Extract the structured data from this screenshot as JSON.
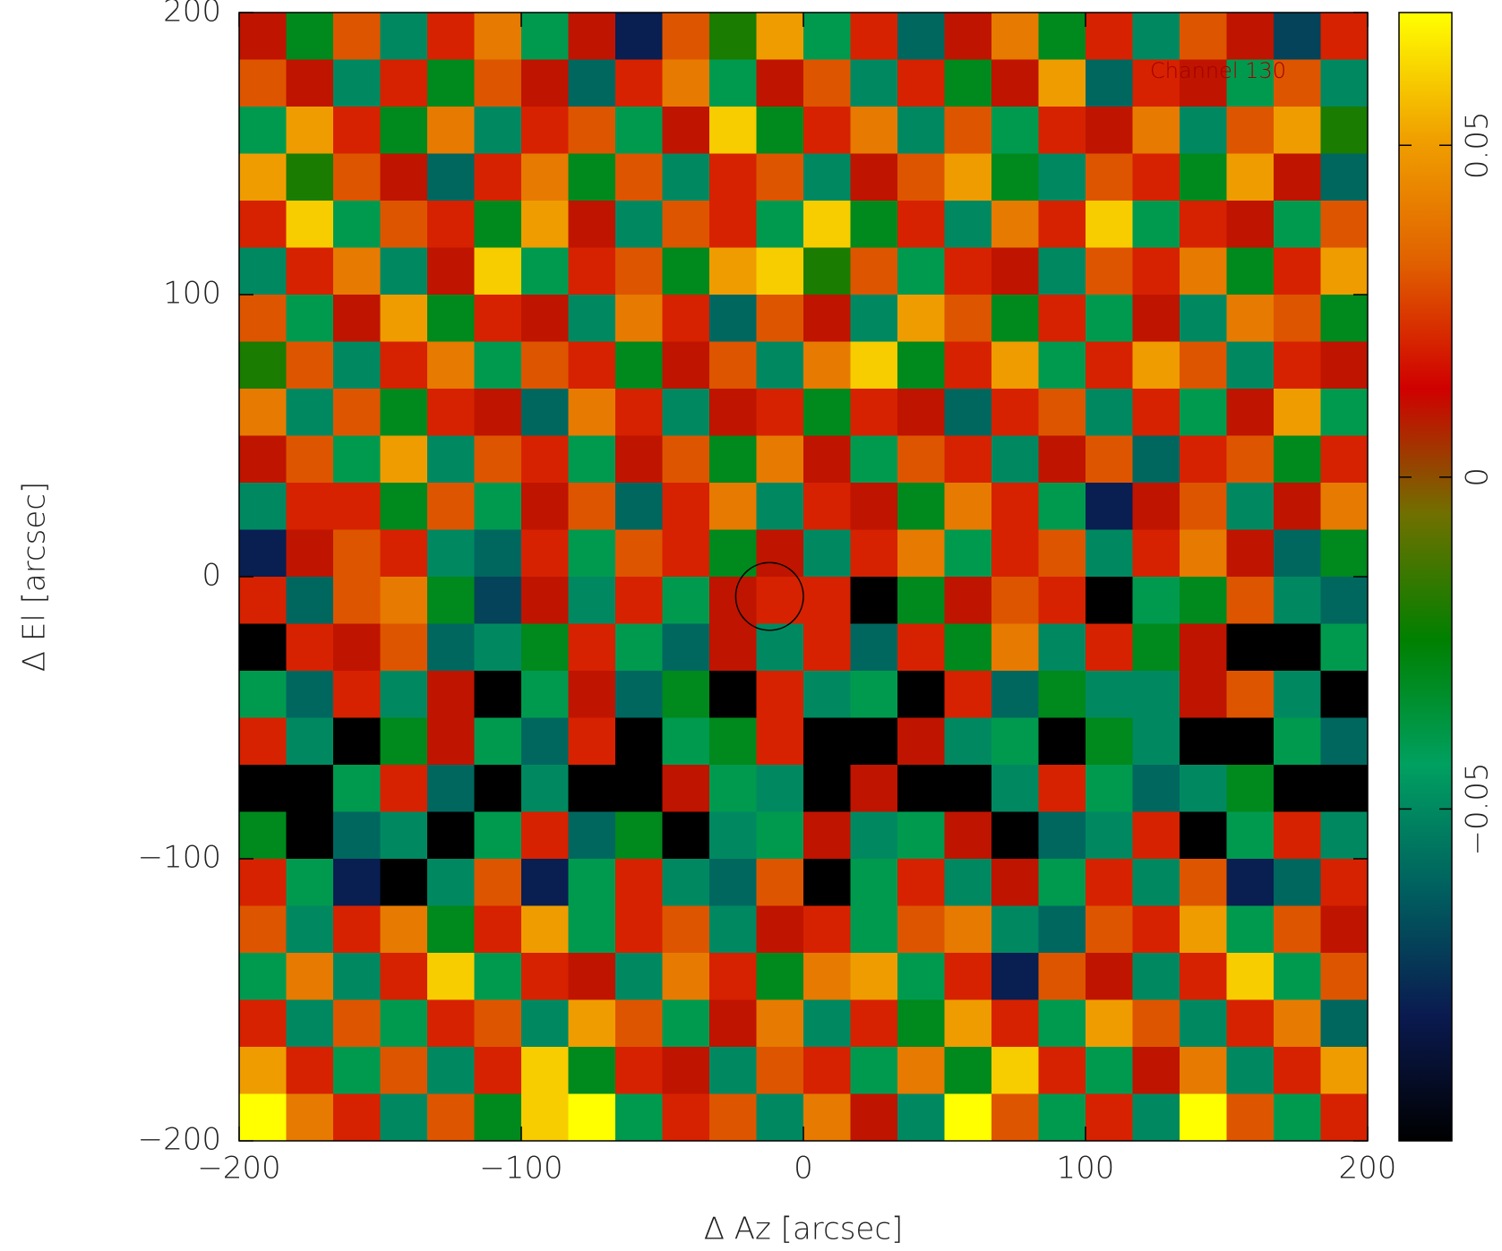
{
  "chart_data": {
    "type": "heatmap",
    "annotation": "Channel 130",
    "x_label": "Δ Az [arcsec]",
    "y_label": "Δ El [arcsec]",
    "xlim": [
      -200,
      200
    ],
    "ylim": [
      -200,
      200
    ],
    "xticks": [
      {
        "value": -200,
        "label": "−200"
      },
      {
        "value": -100,
        "label": "−100"
      },
      0,
      100,
      200
    ],
    "yticks": [
      {
        "value": -200,
        "label": "−200"
      },
      {
        "value": -100,
        "label": "−100"
      },
      0,
      100,
      200
    ],
    "clim": [
      -0.1,
      0.07
    ],
    "cticks": [
      {
        "value": -0.05,
        "label": "−0.05"
      },
      0,
      0.05
    ],
    "colormap": [
      "#000000",
      "#0a1a50",
      "#005f5f",
      "#00a060",
      "#008000",
      "#707000",
      "#d00000",
      "#e06000",
      "#f0a000",
      "#ffff00"
    ],
    "marker": {
      "x": -12,
      "y": -7,
      "r": 12,
      "color": "#000000"
    },
    "z": [
      [
        0.01,
        -0.03,
        0.03,
        -0.05,
        0.02,
        0.04,
        -0.04,
        0.01,
        -0.08,
        0.03,
        -0.02,
        0.05,
        -0.04,
        0.02,
        -0.06,
        0.01,
        0.04,
        -0.03,
        0.02,
        -0.05,
        0.03,
        0.01,
        -0.07,
        0.02
      ],
      [
        0.03,
        0.01,
        -0.05,
        0.02,
        -0.03,
        0.03,
        0.01,
        -0.06,
        0.02,
        0.04,
        -0.04,
        0.01,
        0.03,
        -0.05,
        0.02,
        -0.03,
        0.01,
        0.05,
        -0.06,
        0.02,
        0.01,
        -0.04,
        0.03,
        -0.05
      ],
      [
        -0.04,
        0.05,
        0.02,
        -0.03,
        0.04,
        -0.05,
        0.02,
        0.03,
        -0.04,
        0.01,
        0.06,
        -0.03,
        0.02,
        0.04,
        -0.05,
        0.03,
        -0.04,
        0.02,
        0.01,
        0.04,
        -0.05,
        0.03,
        0.05,
        -0.02
      ],
      [
        0.05,
        -0.02,
        0.03,
        0.01,
        -0.06,
        0.02,
        0.04,
        -0.03,
        0.03,
        -0.05,
        0.02,
        0.03,
        -0.05,
        0.01,
        0.03,
        0.05,
        -0.03,
        -0.05,
        0.03,
        0.02,
        -0.03,
        0.05,
        0.01,
        -0.06
      ],
      [
        0.02,
        0.06,
        -0.04,
        0.03,
        0.02,
        -0.03,
        0.05,
        0.01,
        -0.05,
        0.03,
        0.02,
        -0.04,
        0.06,
        -0.03,
        0.02,
        -0.05,
        0.04,
        0.02,
        0.06,
        -0.04,
        0.02,
        0.01,
        -0.04,
        0.03
      ],
      [
        -0.05,
        0.02,
        0.04,
        -0.05,
        0.01,
        0.06,
        -0.04,
        0.02,
        0.03,
        -0.03,
        0.05,
        0.06,
        -0.02,
        0.03,
        -0.04,
        0.02,
        0.01,
        -0.05,
        0.03,
        0.02,
        0.04,
        -0.03,
        0.02,
        0.05
      ],
      [
        0.03,
        -0.04,
        0.01,
        0.05,
        -0.03,
        0.02,
        0.01,
        -0.05,
        0.04,
        0.02,
        -0.06,
        0.03,
        0.01,
        -0.05,
        0.05,
        0.03,
        -0.03,
        0.02,
        -0.04,
        0.01,
        -0.05,
        0.04,
        0.03,
        -0.03
      ],
      [
        -0.02,
        0.03,
        -0.05,
        0.02,
        0.04,
        -0.04,
        0.03,
        0.02,
        -0.03,
        0.01,
        0.03,
        -0.05,
        0.04,
        0.06,
        -0.03,
        0.02,
        0.05,
        -0.04,
        0.02,
        0.05,
        0.03,
        -0.05,
        0.02,
        0.01
      ],
      [
        0.04,
        -0.05,
        0.03,
        -0.03,
        0.02,
        0.01,
        -0.06,
        0.04,
        0.02,
        -0.05,
        0.01,
        0.02,
        -0.03,
        0.02,
        0.01,
        -0.06,
        0.02,
        0.03,
        -0.05,
        0.02,
        -0.04,
        0.01,
        0.05,
        -0.04
      ],
      [
        0.01,
        0.03,
        -0.04,
        0.05,
        -0.05,
        0.03,
        0.02,
        -0.04,
        0.01,
        0.03,
        -0.03,
        0.04,
        0.01,
        -0.04,
        0.03,
        0.02,
        -0.05,
        0.01,
        0.03,
        -0.06,
        0.02,
        0.03,
        -0.03,
        0.02
      ],
      [
        -0.05,
        0.02,
        0.02,
        -0.03,
        0.03,
        -0.04,
        0.01,
        0.03,
        -0.06,
        0.02,
        0.04,
        -0.05,
        0.02,
        0.01,
        -0.03,
        0.04,
        0.02,
        -0.04,
        -0.08,
        0.01,
        0.03,
        -0.05,
        0.01,
        0.04
      ],
      [
        -0.08,
        0.01,
        0.03,
        0.02,
        -0.05,
        -0.06,
        0.02,
        -0.04,
        0.03,
        0.02,
        -0.03,
        0.01,
        -0.05,
        0.02,
        0.04,
        -0.04,
        0.02,
        0.03,
        -0.05,
        0.02,
        0.04,
        0.01,
        -0.06,
        -0.03
      ],
      [
        0.02,
        -0.06,
        0.03,
        0.04,
        -0.03,
        -0.07,
        0.01,
        -0.05,
        0.02,
        -0.04,
        0.01,
        0.02,
        0.02,
        -0.1,
        -0.03,
        0.01,
        0.03,
        0.02,
        -0.1,
        -0.04,
        -0.03,
        0.03,
        -0.05,
        -0.06
      ],
      [
        -0.1,
        0.02,
        0.01,
        0.03,
        -0.06,
        -0.05,
        -0.03,
        0.02,
        -0.04,
        -0.06,
        0.01,
        -0.05,
        0.02,
        -0.06,
        0.02,
        -0.03,
        0.04,
        -0.05,
        0.02,
        -0.03,
        0.01,
        -0.1,
        -0.1,
        -0.04
      ],
      [
        -0.04,
        -0.06,
        0.02,
        -0.05,
        0.01,
        -0.1,
        -0.04,
        0.01,
        -0.06,
        -0.03,
        -0.1,
        0.02,
        -0.05,
        -0.04,
        -0.1,
        0.02,
        -0.06,
        -0.03,
        -0.05,
        -0.05,
        0.01,
        0.03,
        -0.05,
        -0.1
      ],
      [
        0.02,
        -0.05,
        -0.1,
        -0.03,
        0.01,
        -0.04,
        -0.06,
        0.02,
        -0.1,
        -0.04,
        -0.03,
        0.02,
        -0.1,
        -0.1,
        0.01,
        -0.05,
        -0.04,
        -0.1,
        -0.03,
        -0.05,
        -0.1,
        -0.1,
        -0.04,
        -0.06
      ],
      [
        -0.1,
        -0.1,
        -0.04,
        0.02,
        -0.06,
        -0.1,
        -0.05,
        -0.1,
        -0.1,
        0.01,
        -0.04,
        -0.05,
        -0.1,
        0.01,
        -0.1,
        -0.1,
        -0.05,
        0.02,
        -0.04,
        -0.06,
        -0.05,
        -0.03,
        -0.1,
        -0.1
      ],
      [
        -0.03,
        -0.1,
        -0.06,
        -0.05,
        -0.1,
        -0.04,
        0.02,
        -0.06,
        -0.03,
        -0.1,
        -0.05,
        -0.04,
        0.01,
        -0.05,
        -0.04,
        0.01,
        -0.1,
        -0.06,
        -0.05,
        0.02,
        -0.1,
        -0.04,
        0.02,
        -0.05
      ],
      [
        0.02,
        -0.04,
        -0.08,
        -0.1,
        -0.05,
        0.03,
        -0.08,
        -0.04,
        0.02,
        -0.05,
        -0.06,
        0.03,
        -0.1,
        -0.04,
        0.02,
        -0.05,
        0.01,
        -0.04,
        0.02,
        -0.05,
        0.03,
        -0.08,
        -0.06,
        0.02
      ],
      [
        0.03,
        -0.05,
        0.02,
        0.04,
        -0.03,
        0.02,
        0.05,
        -0.04,
        0.02,
        0.03,
        -0.05,
        0.01,
        0.02,
        -0.04,
        0.03,
        0.04,
        -0.05,
        -0.06,
        0.03,
        0.02,
        0.05,
        -0.04,
        0.03,
        0.01
      ],
      [
        -0.04,
        0.04,
        -0.05,
        0.02,
        0.06,
        -0.04,
        0.02,
        0.01,
        -0.05,
        0.04,
        0.02,
        -0.03,
        0.04,
        0.05,
        -0.04,
        0.02,
        -0.08,
        0.03,
        0.01,
        -0.05,
        0.02,
        0.06,
        -0.04,
        0.03
      ],
      [
        0.02,
        -0.05,
        0.03,
        -0.04,
        0.02,
        0.03,
        -0.05,
        0.05,
        0.03,
        -0.04,
        0.01,
        0.04,
        -0.05,
        0.02,
        -0.03,
        0.05,
        0.02,
        -0.04,
        0.05,
        0.03,
        -0.05,
        0.02,
        0.04,
        -0.06
      ],
      [
        0.05,
        0.02,
        -0.04,
        0.03,
        -0.05,
        0.02,
        0.06,
        -0.03,
        0.02,
        0.01,
        -0.05,
        0.03,
        0.02,
        -0.04,
        0.04,
        -0.03,
        0.06,
        0.02,
        -0.04,
        0.01,
        0.04,
        -0.05,
        0.02,
        0.05
      ],
      [
        0.07,
        0.04,
        0.02,
        -0.05,
        0.03,
        -0.03,
        0.06,
        0.07,
        -0.04,
        0.02,
        0.03,
        -0.05,
        0.04,
        0.01,
        -0.05,
        0.07,
        0.03,
        -0.04,
        0.02,
        -0.05,
        0.07,
        0.03,
        -0.04,
        0.02
      ]
    ]
  }
}
